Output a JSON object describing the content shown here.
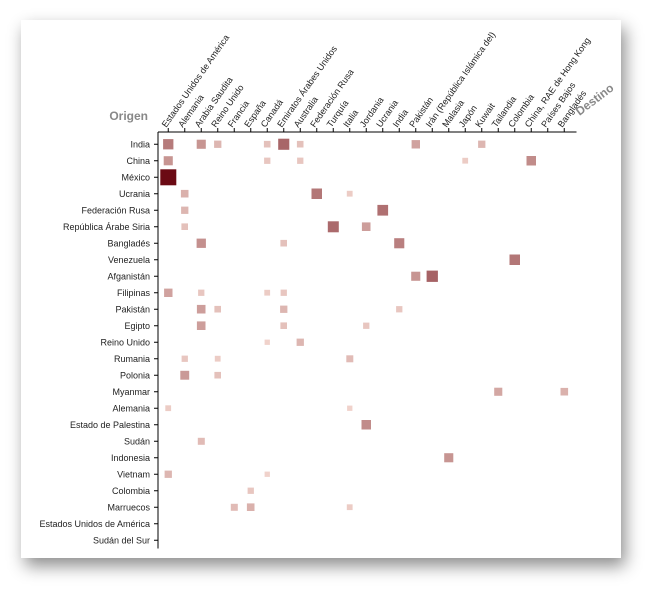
{
  "chart_data": {
    "type": "heatmap",
    "title": "",
    "row_axis_label": "Origen",
    "col_axis_label": "Destino",
    "rows": [
      "India",
      "China",
      "México",
      "Ucrania",
      "Federación Rusa",
      "República Árabe Siria",
      "Bangladés",
      "Venezuela",
      "Afganistán",
      "Filipinas",
      "Pakistán",
      "Egipto",
      "Reino Unido",
      "Rumania",
      "Polonia",
      "Myanmar",
      "Alemania",
      "Estado de Palestina",
      "Sudán",
      "Indonesia",
      "Vietnam",
      "Colombia",
      "Marruecos",
      "Estados Unidos de América",
      "Sudán del Sur"
    ],
    "columns": [
      "Estados Unidos de América",
      "Alemania",
      "Arabia Saudita",
      "Reino Unido",
      "Francia",
      "España",
      "Canadá",
      "Emiratos Árabes Unidos",
      "Australia",
      "Federación Rusa",
      "Turquía",
      "Italia",
      "Jordania",
      "Ucrania",
      "India",
      "Pakistán",
      "Irán (República Islámica del)",
      "Malasia",
      "Japón",
      "Kuwait",
      "Tailandia",
      "Colombia",
      "China, RAE de Hong Kong",
      "Países Bajos",
      "Bangladés"
    ],
    "value_scale": "relative intensity 0-1",
    "color_low": "#fbe3da",
    "color_high": "#6b0a14",
    "cells": [
      {
        "row": "India",
        "col": "Estados Unidos de América",
        "value": 0.4
      },
      {
        "row": "India",
        "col": "Arabia Saudita",
        "value": 0.28
      },
      {
        "row": "India",
        "col": "Reino Unido",
        "value": 0.14
      },
      {
        "row": "India",
        "col": "Canadá",
        "value": 0.1
      },
      {
        "row": "India",
        "col": "Emiratos Árabes Unidos",
        "value": 0.5
      },
      {
        "row": "India",
        "col": "Australia",
        "value": 0.1
      },
      {
        "row": "India",
        "col": "Pakistán",
        "value": 0.22
      },
      {
        "row": "India",
        "col": "Kuwait",
        "value": 0.14
      },
      {
        "row": "China",
        "col": "Estados Unidos de América",
        "value": 0.28
      },
      {
        "row": "China",
        "col": "Canadá",
        "value": 0.08
      },
      {
        "row": "China",
        "col": "Australia",
        "value": 0.08
      },
      {
        "row": "China",
        "col": "Japón",
        "value": 0.06
      },
      {
        "row": "China",
        "col": "China, RAE de Hong Kong",
        "value": 0.32
      },
      {
        "row": "México",
        "col": "Estados Unidos de América",
        "value": 1.0
      },
      {
        "row": "Ucrania",
        "col": "Alemania",
        "value": 0.16
      },
      {
        "row": "Ucrania",
        "col": "Federación Rusa",
        "value": 0.42
      },
      {
        "row": "Ucrania",
        "col": "Italia",
        "value": 0.06
      },
      {
        "row": "Federación Rusa",
        "col": "Alemania",
        "value": 0.14
      },
      {
        "row": "Federación Rusa",
        "col": "Ucrania",
        "value": 0.45
      },
      {
        "row": "República Árabe Siria",
        "col": "Alemania",
        "value": 0.1
      },
      {
        "row": "República Árabe Siria",
        "col": "Turquía",
        "value": 0.48
      },
      {
        "row": "República Árabe Siria",
        "col": "Jordania",
        "value": 0.24
      },
      {
        "row": "Bangladés",
        "col": "Arabia Saudita",
        "value": 0.3
      },
      {
        "row": "Bangladés",
        "col": "Emiratos Árabes Unidos",
        "value": 0.1
      },
      {
        "row": "Bangladés",
        "col": "India",
        "value": 0.38
      },
      {
        "row": "Venezuela",
        "col": "Colombia",
        "value": 0.42
      },
      {
        "row": "Afganistán",
        "col": "Pakistán",
        "value": 0.28
      },
      {
        "row": "Afganistán",
        "col": "Irán (República Islámica del)",
        "value": 0.52
      },
      {
        "row": "Filipinas",
        "col": "Estados Unidos de América",
        "value": 0.22
      },
      {
        "row": "Filipinas",
        "col": "Arabia Saudita",
        "value": 0.08
      },
      {
        "row": "Filipinas",
        "col": "Canadá",
        "value": 0.06
      },
      {
        "row": "Filipinas",
        "col": "Emiratos Árabes Unidos",
        "value": 0.08
      },
      {
        "row": "Pakistán",
        "col": "Arabia Saudita",
        "value": 0.24
      },
      {
        "row": "Pakistán",
        "col": "Reino Unido",
        "value": 0.1
      },
      {
        "row": "Pakistán",
        "col": "Emiratos Árabes Unidos",
        "value": 0.14
      },
      {
        "row": "Pakistán",
        "col": "India",
        "value": 0.08
      },
      {
        "row": "Egipto",
        "col": "Arabia Saudita",
        "value": 0.24
      },
      {
        "row": "Egipto",
        "col": "Emiratos Árabes Unidos",
        "value": 0.1
      },
      {
        "row": "Egipto",
        "col": "Jordania",
        "value": 0.08
      },
      {
        "row": "Reino Unido",
        "col": "Australia",
        "value": 0.14
      },
      {
        "row": "Reino Unido",
        "col": "Canadá",
        "value": 0.04
      },
      {
        "row": "Rumania",
        "col": "Alemania",
        "value": 0.08
      },
      {
        "row": "Rumania",
        "col": "Reino Unido",
        "value": 0.06
      },
      {
        "row": "Rumania",
        "col": "Italia",
        "value": 0.12
      },
      {
        "row": "Polonia",
        "col": "Alemania",
        "value": 0.26
      },
      {
        "row": "Polonia",
        "col": "Reino Unido",
        "value": 0.1
      },
      {
        "row": "Myanmar",
        "col": "Tailandia",
        "value": 0.2
      },
      {
        "row": "Myanmar",
        "col": "Bangladés",
        "value": 0.16
      },
      {
        "row": "Alemania",
        "col": "Estados Unidos de América",
        "value": 0.06
      },
      {
        "row": "Alemania",
        "col": "Italia",
        "value": 0.04
      },
      {
        "row": "Estado de Palestina",
        "col": "Jordania",
        "value": 0.32
      },
      {
        "row": "Sudán",
        "col": "Arabia Saudita",
        "value": 0.12
      },
      {
        "row": "Indonesia",
        "col": "Malasia",
        "value": 0.28
      },
      {
        "row": "Vietnam",
        "col": "Estados Unidos de América",
        "value": 0.14
      },
      {
        "row": "Vietnam",
        "col": "Canadá",
        "value": 0.04
      },
      {
        "row": "Colombia",
        "col": "España",
        "value": 0.08
      },
      {
        "row": "Marruecos",
        "col": "Francia",
        "value": 0.12
      },
      {
        "row": "Marruecos",
        "col": "España",
        "value": 0.16
      },
      {
        "row": "Marruecos",
        "col": "Italia",
        "value": 0.06
      }
    ]
  }
}
